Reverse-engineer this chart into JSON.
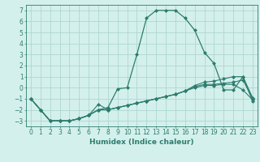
{
  "xlabel": "Humidex (Indice chaleur)",
  "x": [
    0,
    1,
    2,
    3,
    4,
    5,
    6,
    7,
    8,
    9,
    10,
    11,
    12,
    13,
    14,
    15,
    16,
    17,
    18,
    19,
    20,
    21,
    22,
    23
  ],
  "line1": [
    -1.0,
    -2.0,
    -3.0,
    -3.0,
    -3.0,
    -2.8,
    -2.5,
    -2.0,
    -1.8,
    -0.1,
    0.0,
    3.0,
    6.3,
    7.0,
    7.0,
    7.0,
    6.3,
    5.2,
    3.2,
    2.2,
    -0.2,
    -0.2,
    1.0,
    -1.2
  ],
  "line2": [
    -1.0,
    -2.0,
    -3.0,
    -3.0,
    -3.0,
    -2.8,
    -2.5,
    -1.5,
    -2.0,
    -1.8,
    -1.6,
    -1.4,
    -1.2,
    -1.0,
    -0.8,
    -0.6,
    -0.3,
    0.0,
    0.2,
    0.2,
    0.3,
    0.3,
    -0.2,
    -1.1
  ],
  "line3": [
    -1.0,
    -2.0,
    -3.0,
    -3.0,
    -3.0,
    -2.8,
    -2.5,
    -2.0,
    -2.0,
    -1.8,
    -1.6,
    -1.4,
    -1.2,
    -1.0,
    -0.8,
    -0.6,
    -0.3,
    0.1,
    0.3,
    0.3,
    0.4,
    0.5,
    0.7,
    -1.0
  ],
  "line4": [
    -1.0,
    -2.0,
    -3.0,
    -3.0,
    -3.0,
    -2.8,
    -2.5,
    -2.0,
    -2.0,
    -1.8,
    -1.6,
    -1.4,
    -1.2,
    -1.0,
    -0.8,
    -0.6,
    -0.3,
    0.2,
    0.5,
    0.6,
    0.8,
    1.0,
    1.0,
    -0.9
  ],
  "color": "#2d7d6e",
  "bg_color": "#d4f0ec",
  "grid_color": "#aed6d0",
  "ylim": [
    -3.5,
    7.5
  ],
  "xlim": [
    -0.5,
    23.5
  ],
  "yticks": [
    -3,
    -2,
    -1,
    0,
    1,
    2,
    3,
    4,
    5,
    6,
    7
  ],
  "xticks": [
    0,
    1,
    2,
    3,
    4,
    5,
    6,
    7,
    8,
    9,
    10,
    11,
    12,
    13,
    14,
    15,
    16,
    17,
    18,
    19,
    20,
    21,
    22,
    23
  ]
}
